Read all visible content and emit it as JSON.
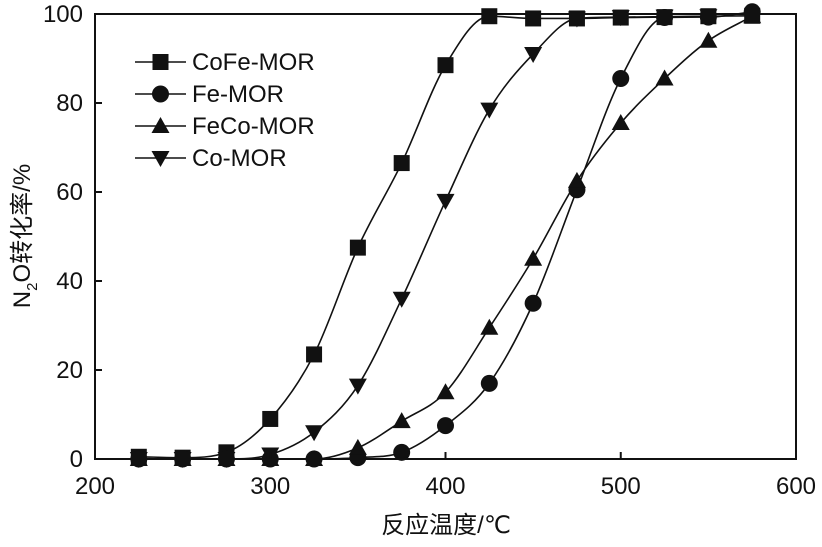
{
  "chart_data": {
    "type": "line",
    "title": "",
    "xlabel": "反应温度/℃",
    "ylabel_parts": {
      "pre": "N",
      "sub": "2",
      "post": "O转化率/%"
    },
    "xlim": [
      200,
      600
    ],
    "ylim": [
      0,
      100
    ],
    "x_ticks": [
      200,
      300,
      400,
      500,
      600
    ],
    "y_ticks": [
      0,
      20,
      40,
      60,
      80,
      100
    ],
    "grid": false,
    "legend_position": "top-left",
    "series": [
      {
        "name": "CoFe-MOR",
        "marker": "square",
        "x": [
          225,
          250,
          275,
          300,
          325,
          350,
          375,
          400,
          425,
          450,
          475,
          500,
          525,
          550,
          575
        ],
        "y": [
          0.5,
          0.3,
          1.5,
          9,
          23.5,
          47.5,
          66.5,
          88.5,
          99.5,
          99,
          99,
          99.2,
          99.3,
          99.5,
          99.6
        ]
      },
      {
        "name": "Fe-MOR",
        "marker": "circle",
        "x": [
          225,
          250,
          275,
          300,
          325,
          350,
          375,
          400,
          425,
          450,
          475,
          500,
          525,
          550,
          575
        ],
        "y": [
          0,
          0,
          0,
          0,
          0,
          0.3,
          1.5,
          7.5,
          17,
          35,
          60.5,
          85.5,
          99.2,
          99.3,
          100.5
        ]
      },
      {
        "name": "FeCo-MOR",
        "marker": "triangle-up",
        "x": [
          225,
          250,
          275,
          300,
          325,
          350,
          375,
          400,
          425,
          450,
          475,
          500,
          525,
          550,
          575
        ],
        "y": [
          0,
          0,
          0,
          0,
          0,
          2.5,
          8.5,
          15,
          29.5,
          45,
          62.5,
          75.5,
          85.5,
          94,
          99.5
        ]
      },
      {
        "name": "Co-MOR",
        "marker": "triangle-down",
        "x": [
          225,
          250,
          275,
          300,
          325,
          350,
          375,
          400,
          425,
          450,
          475,
          500,
          525,
          550
        ],
        "y": [
          0,
          0,
          0,
          1,
          6,
          16.5,
          36,
          58,
          78.5,
          91,
          99,
          99.3,
          99.4,
          99.5
        ]
      }
    ]
  }
}
